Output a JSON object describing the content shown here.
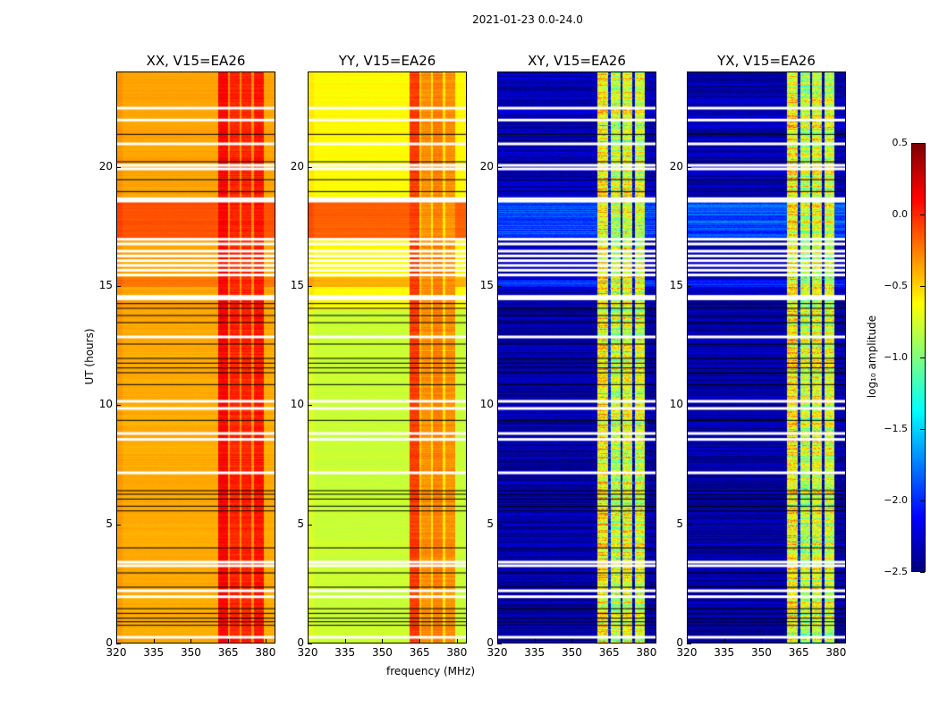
{
  "suptitle": "2021-01-23 0.0-24.0",
  "xlabel": "frequency (MHz)",
  "ylabel": "UT (hours)",
  "colorbar": {
    "label": "log₁₀ amplitude",
    "ticks": [
      "0.5",
      "0.0",
      "−0.5",
      "−1.0",
      "−1.5",
      "−2.0",
      "−2.5"
    ],
    "tick_values": [
      0.5,
      0.0,
      -0.5,
      -1.0,
      -1.5,
      -2.0,
      -2.5
    ],
    "range": [
      -2.5,
      0.5
    ],
    "colormap": "jet"
  },
  "chart_data": {
    "type": "heatmap",
    "xlim": [
      320,
      384
    ],
    "ylim": [
      0,
      24
    ],
    "xticks": [
      "320",
      "335",
      "350",
      "365",
      "380"
    ],
    "xtick_values": [
      320,
      335,
      350,
      365,
      380
    ],
    "yticks": [
      "0",
      "5",
      "10",
      "15",
      "20"
    ],
    "ytick_values": [
      0,
      5,
      10,
      15,
      20
    ],
    "flagged_white_hours": [
      22.5,
      22.0,
      21.0,
      19.95,
      20.1,
      18.7,
      18.6,
      17.0,
      16.8,
      16.5,
      16.3,
      16.1,
      15.9,
      15.7,
      15.5,
      14.6,
      14.5,
      12.9,
      10.2,
      9.9,
      8.85,
      8.6,
      7.2,
      3.45,
      3.3,
      2.25,
      2.0,
      0.3
    ],
    "flagged_black_hours": [
      21.4,
      20.25,
      19.5,
      19.0,
      14.3,
      14.1,
      13.8,
      13.5,
      12.6,
      12.0,
      11.8,
      11.6,
      11.4,
      10.9,
      9.4,
      6.45,
      6.3,
      6.1,
      5.8,
      5.6,
      4.05,
      3.0,
      2.4,
      1.5,
      1.3,
      1.1,
      0.95,
      0.8
    ],
    "panels": [
      {
        "title": "XX, V15=EA26",
        "base": -0.38,
        "base_upper": -0.36,
        "bands": [
          [
            17.0,
            18.6,
            -0.12
          ],
          [
            15.0,
            15.4,
            -0.22
          ]
        ],
        "columns": [
          [
            361,
            365,
            0.12
          ],
          [
            365,
            365.6,
            -0.3
          ],
          [
            365.6,
            369.6,
            0.02
          ],
          [
            369.6,
            370.4,
            -0.3
          ],
          [
            370.4,
            374.4,
            0.02
          ],
          [
            374.4,
            375.4,
            -0.3
          ],
          [
            375.4,
            379.4,
            0.06
          ]
        ],
        "noise": 0.06
      },
      {
        "title": "YY, V15=EA26",
        "base": -0.78,
        "base_upper": -0.62,
        "bands": [
          [
            17.0,
            18.6,
            -0.15
          ],
          [
            15.0,
            15.4,
            -0.4
          ]
        ],
        "columns": [
          [
            361,
            365,
            -0.05
          ],
          [
            365,
            365.6,
            -0.5
          ],
          [
            365.6,
            369.6,
            -0.3
          ],
          [
            369.6,
            370.4,
            -0.55
          ],
          [
            370.4,
            374.4,
            -0.25
          ],
          [
            374.4,
            375.4,
            -0.55
          ],
          [
            375.4,
            379.4,
            -0.3
          ]
        ],
        "noise": 0.06
      },
      {
        "title": "XY, V15=EA26",
        "base": -2.4,
        "base_upper": -2.35,
        "bands": [
          [
            17.0,
            18.6,
            -1.9
          ],
          [
            15.0,
            15.3,
            -2.0
          ]
        ],
        "columns": [
          [
            360.3,
            364.5,
            -0.6
          ],
          [
            364.5,
            365.5,
            -2.1
          ],
          [
            365.5,
            369.5,
            -0.8
          ],
          [
            369.5,
            370.5,
            -2.2
          ],
          [
            370.5,
            374.2,
            -0.7
          ],
          [
            374.2,
            375.3,
            -2.3
          ],
          [
            375.3,
            379.4,
            -0.75
          ]
        ],
        "noise": 0.35
      },
      {
        "title": "YX, V15=EA26",
        "base": -2.4,
        "base_upper": -2.35,
        "bands": [
          [
            17.0,
            18.6,
            -1.9
          ],
          [
            15.0,
            15.3,
            -2.0
          ]
        ],
        "columns": [
          [
            360.3,
            364.5,
            -0.6
          ],
          [
            364.5,
            365.5,
            -2.1
          ],
          [
            365.5,
            369.5,
            -0.8
          ],
          [
            369.5,
            370.5,
            -2.2
          ],
          [
            370.5,
            374.2,
            -0.7
          ],
          [
            374.2,
            375.3,
            -2.3
          ],
          [
            375.3,
            379.4,
            -0.75
          ]
        ],
        "noise": 0.35
      }
    ]
  }
}
